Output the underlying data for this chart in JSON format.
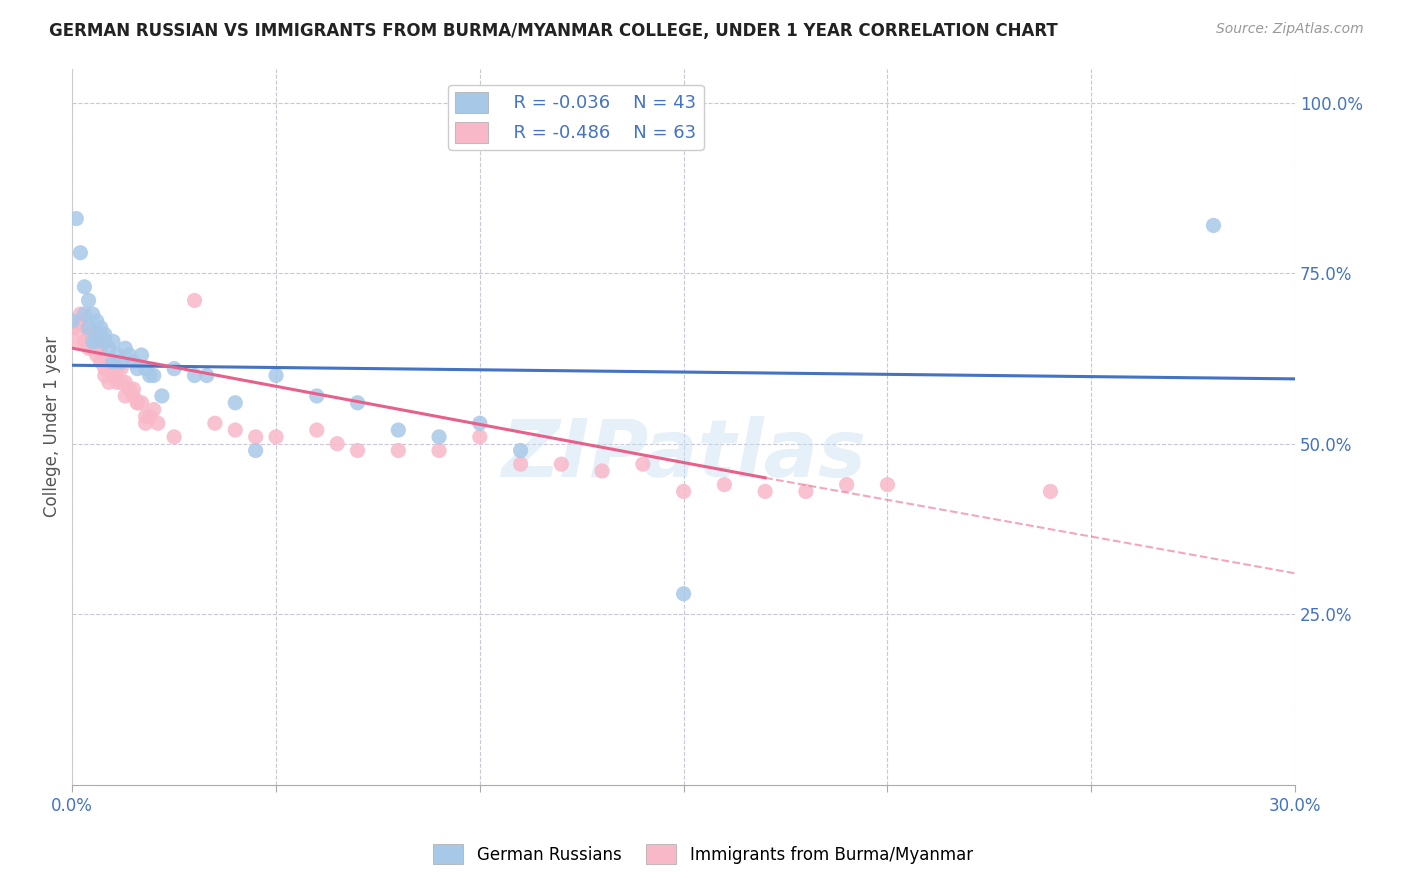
{
  "title": "GERMAN RUSSIAN VS IMMIGRANTS FROM BURMA/MYANMAR COLLEGE, UNDER 1 YEAR CORRELATION CHART",
  "source_text": "Source: ZipAtlas.com",
  "ylabel": "College, Under 1 year",
  "ylabel_right_ticks": [
    "100.0%",
    "75.0%",
    "50.0%",
    "25.0%"
  ],
  "ylabel_right_vals": [
    1.0,
    0.75,
    0.5,
    0.25
  ],
  "watermark": "ZIPatlas",
  "legend": {
    "blue_r": "R = -0.036",
    "blue_n": "N = 43",
    "pink_r": "R = -0.486",
    "pink_n": "N = 63"
  },
  "blue_scatter": [
    [
      0.0,
      0.68
    ],
    [
      0.001,
      0.83
    ],
    [
      0.002,
      0.78
    ],
    [
      0.003,
      0.73
    ],
    [
      0.003,
      0.69
    ],
    [
      0.004,
      0.71
    ],
    [
      0.004,
      0.67
    ],
    [
      0.005,
      0.69
    ],
    [
      0.005,
      0.65
    ],
    [
      0.006,
      0.68
    ],
    [
      0.006,
      0.65
    ],
    [
      0.007,
      0.67
    ],
    [
      0.007,
      0.66
    ],
    [
      0.008,
      0.66
    ],
    [
      0.008,
      0.65
    ],
    [
      0.009,
      0.64
    ],
    [
      0.01,
      0.65
    ],
    [
      0.01,
      0.62
    ],
    [
      0.011,
      0.63
    ],
    [
      0.012,
      0.62
    ],
    [
      0.013,
      0.64
    ],
    [
      0.014,
      0.63
    ],
    [
      0.015,
      0.62
    ],
    [
      0.016,
      0.61
    ],
    [
      0.017,
      0.63
    ],
    [
      0.018,
      0.61
    ],
    [
      0.019,
      0.6
    ],
    [
      0.02,
      0.6
    ],
    [
      0.022,
      0.57
    ],
    [
      0.025,
      0.61
    ],
    [
      0.03,
      0.6
    ],
    [
      0.033,
      0.6
    ],
    [
      0.04,
      0.56
    ],
    [
      0.045,
      0.49
    ],
    [
      0.05,
      0.6
    ],
    [
      0.06,
      0.57
    ],
    [
      0.07,
      0.56
    ],
    [
      0.08,
      0.52
    ],
    [
      0.09,
      0.51
    ],
    [
      0.1,
      0.53
    ],
    [
      0.11,
      0.49
    ],
    [
      0.15,
      0.28
    ],
    [
      0.28,
      0.82
    ]
  ],
  "pink_scatter": [
    [
      0.0,
      0.67
    ],
    [
      0.001,
      0.67
    ],
    [
      0.001,
      0.65
    ],
    [
      0.002,
      0.69
    ],
    [
      0.002,
      0.68
    ],
    [
      0.003,
      0.67
    ],
    [
      0.003,
      0.65
    ],
    [
      0.004,
      0.66
    ],
    [
      0.004,
      0.64
    ],
    [
      0.005,
      0.66
    ],
    [
      0.005,
      0.65
    ],
    [
      0.005,
      0.64
    ],
    [
      0.006,
      0.65
    ],
    [
      0.006,
      0.64
    ],
    [
      0.006,
      0.63
    ],
    [
      0.007,
      0.64
    ],
    [
      0.007,
      0.62
    ],
    [
      0.008,
      0.61
    ],
    [
      0.008,
      0.6
    ],
    [
      0.009,
      0.62
    ],
    [
      0.009,
      0.59
    ],
    [
      0.01,
      0.61
    ],
    [
      0.01,
      0.6
    ],
    [
      0.011,
      0.61
    ],
    [
      0.011,
      0.59
    ],
    [
      0.012,
      0.61
    ],
    [
      0.012,
      0.59
    ],
    [
      0.013,
      0.59
    ],
    [
      0.013,
      0.57
    ],
    [
      0.014,
      0.58
    ],
    [
      0.015,
      0.57
    ],
    [
      0.015,
      0.58
    ],
    [
      0.016,
      0.56
    ],
    [
      0.016,
      0.56
    ],
    [
      0.017,
      0.56
    ],
    [
      0.018,
      0.54
    ],
    [
      0.018,
      0.53
    ],
    [
      0.019,
      0.54
    ],
    [
      0.02,
      0.55
    ],
    [
      0.021,
      0.53
    ],
    [
      0.025,
      0.51
    ],
    [
      0.03,
      0.71
    ],
    [
      0.035,
      0.53
    ],
    [
      0.04,
      0.52
    ],
    [
      0.045,
      0.51
    ],
    [
      0.05,
      0.51
    ],
    [
      0.06,
      0.52
    ],
    [
      0.065,
      0.5
    ],
    [
      0.07,
      0.49
    ],
    [
      0.08,
      0.49
    ],
    [
      0.09,
      0.49
    ],
    [
      0.1,
      0.51
    ],
    [
      0.11,
      0.47
    ],
    [
      0.12,
      0.47
    ],
    [
      0.13,
      0.46
    ],
    [
      0.14,
      0.47
    ],
    [
      0.15,
      0.43
    ],
    [
      0.16,
      0.44
    ],
    [
      0.17,
      0.43
    ],
    [
      0.18,
      0.43
    ],
    [
      0.19,
      0.44
    ],
    [
      0.2,
      0.44
    ],
    [
      0.24,
      0.43
    ]
  ],
  "blue_line": {
    "x0": 0.0,
    "x1": 0.3,
    "y0": 0.615,
    "y1": 0.595
  },
  "pink_line_solid": {
    "x0": 0.0,
    "x1": 0.17,
    "y0": 0.64,
    "y1": 0.45
  },
  "pink_line_dashed": {
    "x0": 0.17,
    "x1": 0.3,
    "y0": 0.45,
    "y1": 0.31
  },
  "blue_color": "#a8c8e8",
  "pink_color": "#f8b8c8",
  "blue_line_color": "#4472c4",
  "pink_line_color": "#e8608a",
  "grid_color": "#c8c8d8",
  "background_color": "#ffffff",
  "xlim": [
    0.0,
    0.3
  ],
  "ylim": [
    0.0,
    1.05
  ],
  "x_tick_positions": [
    0.0,
    0.05,
    0.1,
    0.15,
    0.2,
    0.25,
    0.3
  ]
}
